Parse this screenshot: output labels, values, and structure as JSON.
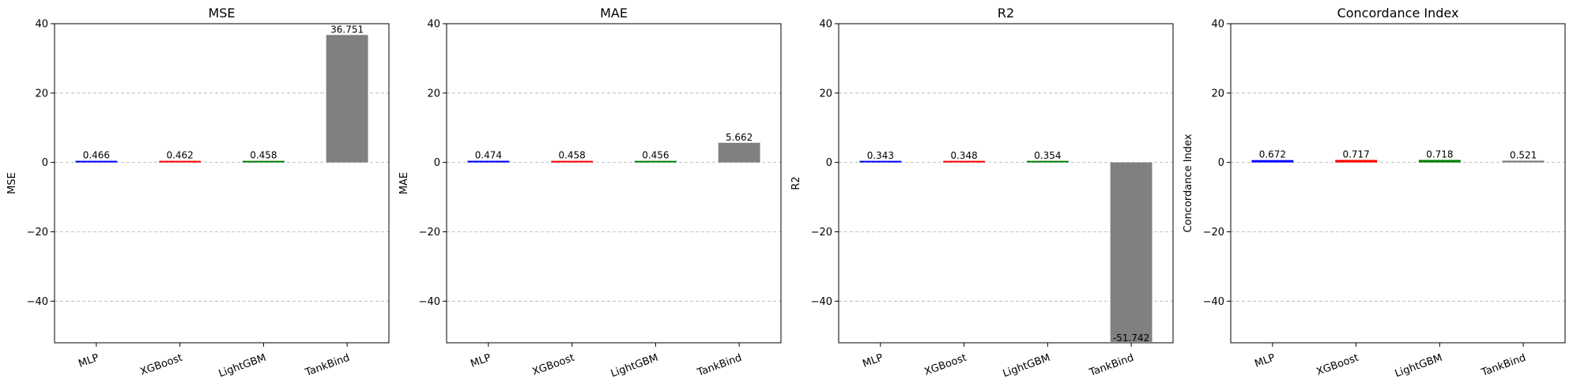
{
  "chart_data": [
    {
      "type": "bar",
      "title": "MSE",
      "ylabel": "MSE",
      "categories": [
        "MLP",
        "XGBoost",
        "LightGBM",
        "TankBind"
      ],
      "values": [
        0.466,
        0.462,
        0.458,
        36.751
      ],
      "value_labels": [
        "0.466",
        "0.462",
        "0.458",
        "36.751"
      ],
      "colors": [
        "#0000ff",
        "#ff0000",
        "#008000",
        "#808080"
      ],
      "ylim": [
        -52,
        40
      ],
      "yticks": [
        -40,
        -20,
        0,
        20,
        40
      ],
      "grid": true
    },
    {
      "type": "bar",
      "title": "MAE",
      "ylabel": "MAE",
      "categories": [
        "MLP",
        "XGBoost",
        "LightGBM",
        "TankBind"
      ],
      "values": [
        0.474,
        0.458,
        0.456,
        5.662
      ],
      "value_labels": [
        "0.474",
        "0.458",
        "0.456",
        "5.662"
      ],
      "colors": [
        "#0000ff",
        "#ff0000",
        "#008000",
        "#808080"
      ],
      "ylim": [
        -52,
        40
      ],
      "yticks": [
        -40,
        -20,
        0,
        20,
        40
      ],
      "grid": true
    },
    {
      "type": "bar",
      "title": "R2",
      "ylabel": "R2",
      "categories": [
        "MLP",
        "XGBoost",
        "LightGBM",
        "TankBind"
      ],
      "values": [
        0.343,
        0.348,
        0.354,
        -51.742
      ],
      "value_labels": [
        "0.343",
        "0.348",
        "0.354",
        "-51.742"
      ],
      "colors": [
        "#0000ff",
        "#ff0000",
        "#008000",
        "#808080"
      ],
      "ylim": [
        -52,
        40
      ],
      "yticks": [
        -40,
        -20,
        0,
        20,
        40
      ],
      "grid": true
    },
    {
      "type": "bar",
      "title": "Concordance Index",
      "ylabel": "Concordance Index",
      "categories": [
        "MLP",
        "XGBoost",
        "LightGBM",
        "TankBind"
      ],
      "values": [
        0.672,
        0.717,
        0.718,
        0.521
      ],
      "value_labels": [
        "0.672",
        "0.717",
        "0.718",
        "0.521"
      ],
      "colors": [
        "#0000ff",
        "#ff0000",
        "#008000",
        "#808080"
      ],
      "ylim": [
        -52,
        40
      ],
      "yticks": [
        -40,
        -20,
        0,
        20,
        40
      ],
      "grid": true
    }
  ]
}
